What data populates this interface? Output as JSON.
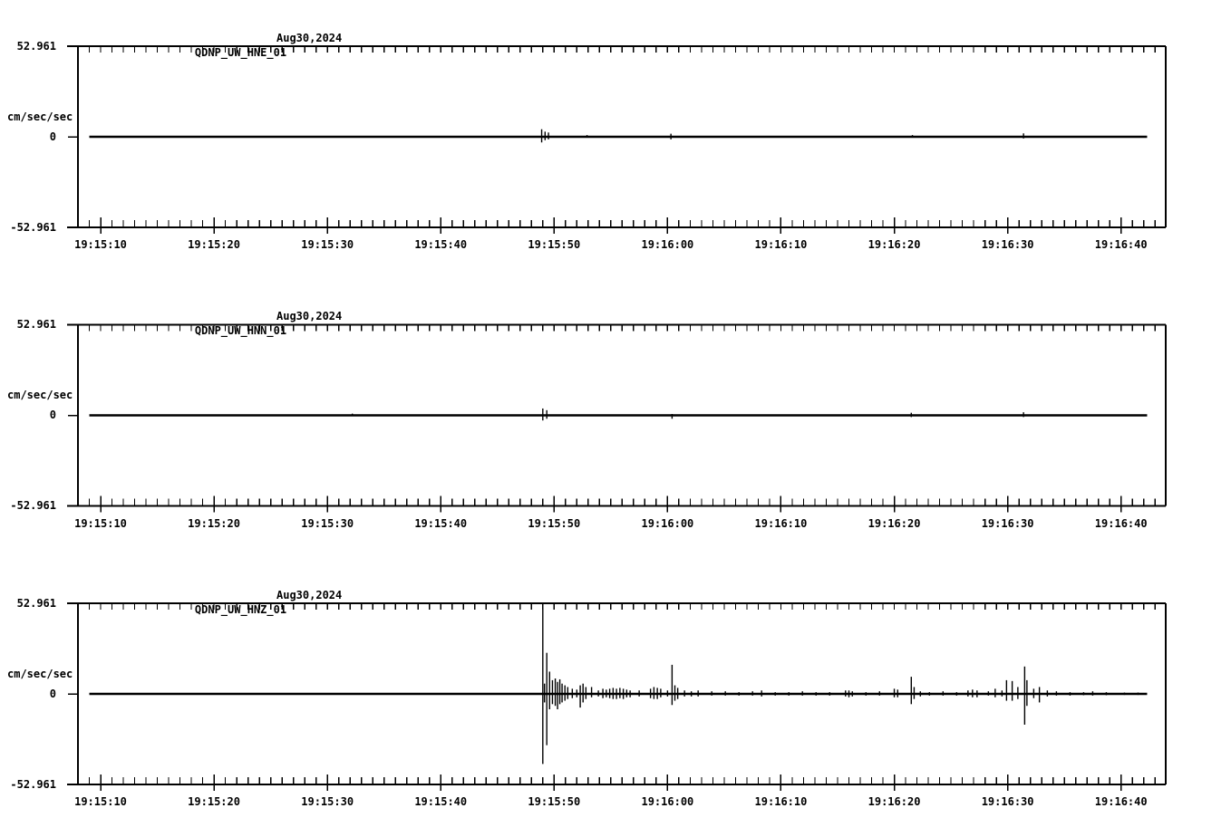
{
  "colors": {
    "background": "#ffffff",
    "ink": "#000000"
  },
  "y_axis": {
    "top_label": "52.961",
    "zero_label": "0",
    "bottom_label": "-52.961",
    "unit_label": "cm/sec/sec"
  },
  "chart_data": [
    {
      "type": "line",
      "title": "QDNP_UW_HNE_01",
      "date": "Aug30,2024",
      "ylabel": "cm/sec/sec",
      "ylim": [
        -52.961,
        52.961
      ],
      "ytick_labels": [
        "52.961",
        "0",
        "-52.961"
      ],
      "xtick_labels": [
        "19:15:10",
        "19:15:20",
        "19:15:30",
        "19:15:40",
        "19:15:50",
        "19:16:00",
        "19:16:10",
        "19:16:20",
        "19:16:30",
        "19:16:40"
      ],
      "xtick_seconds": [
        10,
        20,
        30,
        40,
        50,
        60,
        70,
        80,
        90,
        100
      ],
      "minor_tick_step_seconds": 1,
      "window_seconds": [
        8,
        103.9
      ],
      "baseline_value": 0,
      "trace_span_seconds": [
        9,
        102.3
      ],
      "spikes": [
        [
          48.9,
          4.4,
          -3.3
        ],
        [
          49.2,
          3,
          -2
        ],
        [
          49.5,
          2.5,
          -1.5
        ],
        [
          52.9,
          1,
          -0.5
        ],
        [
          60.3,
          1.8,
          -1.5
        ],
        [
          81.6,
          1,
          -0.5
        ],
        [
          91.4,
          2,
          -1
        ]
      ]
    },
    {
      "type": "line",
      "title": "QDNP_UW_HNN_01",
      "date": "Aug30,2024",
      "ylabel": "cm/sec/sec",
      "ylim": [
        -52.961,
        52.961
      ],
      "ytick_labels": [
        "52.961",
        "0",
        "-52.961"
      ],
      "xtick_labels": [
        "19:15:10",
        "19:15:20",
        "19:15:30",
        "19:15:40",
        "19:15:50",
        "19:16:00",
        "19:16:10",
        "19:16:20",
        "19:16:30",
        "19:16:40"
      ],
      "xtick_seconds": [
        10,
        20,
        30,
        40,
        50,
        60,
        70,
        80,
        90,
        100
      ],
      "minor_tick_step_seconds": 1,
      "window_seconds": [
        8,
        103.9
      ],
      "baseline_value": 0,
      "trace_span_seconds": [
        9,
        102.3
      ],
      "spikes": [
        [
          32.2,
          1,
          -0.4
        ],
        [
          49.0,
          4,
          -3
        ],
        [
          49.35,
          3,
          -2
        ],
        [
          60.4,
          0.8,
          -2
        ],
        [
          81.5,
          1.5,
          -1
        ],
        [
          91.4,
          1.8,
          -1
        ]
      ]
    },
    {
      "type": "line",
      "title": "QDNP_UW_HNZ_01",
      "date": "Aug30,2024",
      "ylabel": "cm/sec/sec",
      "ylim": [
        -52.961,
        52.961
      ],
      "ytick_labels": [
        "52.961",
        "0",
        "-52.961"
      ],
      "xtick_labels": [
        "19:15:10",
        "19:15:20",
        "19:15:30",
        "19:15:40",
        "19:15:50",
        "19:16:00",
        "19:16:10",
        "19:16:20",
        "19:16:30",
        "19:16:40"
      ],
      "xtick_seconds": [
        10,
        20,
        30,
        40,
        50,
        60,
        70,
        80,
        90,
        100
      ],
      "minor_tick_step_seconds": 1,
      "window_seconds": [
        8,
        103.9
      ],
      "baseline_value": 0,
      "trace_span_seconds": [
        9,
        102.3
      ],
      "spikes": [
        [
          49.0,
          52.8,
          -41
        ],
        [
          49.15,
          6,
          -5
        ],
        [
          49.35,
          24,
          -30
        ],
        [
          49.6,
          13,
          -9
        ],
        [
          49.85,
          8,
          -6
        ],
        [
          50.1,
          9,
          -7
        ],
        [
          50.3,
          7,
          -9
        ],
        [
          50.5,
          8.5,
          -6
        ],
        [
          50.7,
          6,
          -5
        ],
        [
          50.95,
          5,
          -4
        ],
        [
          51.2,
          4,
          -3
        ],
        [
          51.6,
          3,
          -2.5
        ],
        [
          52.0,
          2.5,
          -2
        ],
        [
          52.3,
          5,
          -8
        ],
        [
          52.55,
          6,
          -5
        ],
        [
          52.8,
          4,
          -3
        ],
        [
          53.3,
          4,
          -2
        ],
        [
          53.9,
          2,
          -1.5
        ],
        [
          54.3,
          3,
          -2.5
        ],
        [
          54.6,
          2.5,
          -2
        ],
        [
          54.9,
          3,
          -2.5
        ],
        [
          55.2,
          3.5,
          -3
        ],
        [
          55.5,
          3,
          -3
        ],
        [
          55.8,
          3.5,
          -2.5
        ],
        [
          56.1,
          3,
          -3
        ],
        [
          56.4,
          2.5,
          -2
        ],
        [
          56.7,
          2,
          -2
        ],
        [
          57.5,
          2,
          -1.5
        ],
        [
          58.5,
          3,
          -2.5
        ],
        [
          58.8,
          4,
          -3
        ],
        [
          59.1,
          3.5,
          -3
        ],
        [
          59.4,
          3,
          -2
        ],
        [
          60.0,
          2,
          -1.5
        ],
        [
          60.4,
          17,
          -6.5
        ],
        [
          60.65,
          5,
          -4
        ],
        [
          60.9,
          3.5,
          -3
        ],
        [
          61.5,
          2,
          -1.5
        ],
        [
          62.1,
          1.5,
          -1.5
        ],
        [
          62.7,
          2,
          -1.5
        ],
        [
          63.9,
          1.5,
          -1
        ],
        [
          65.1,
          1.5,
          -1
        ],
        [
          66.3,
          1,
          -1
        ],
        [
          67.5,
          1.5,
          -1
        ],
        [
          68.3,
          2,
          -1.5
        ],
        [
          69.5,
          1,
          -1
        ],
        [
          70.7,
          1,
          -1
        ],
        [
          71.9,
          1.5,
          -1
        ],
        [
          73.1,
          1,
          -1
        ],
        [
          74.3,
          1,
          -1
        ],
        [
          75.7,
          2,
          -1.5
        ],
        [
          76.0,
          2,
          -2
        ],
        [
          76.3,
          1.5,
          -1.5
        ],
        [
          77.5,
          1,
          -1
        ],
        [
          78.7,
          1.5,
          -1
        ],
        [
          80.0,
          3,
          -2
        ],
        [
          80.3,
          2.5,
          -2
        ],
        [
          81.5,
          10,
          -6
        ],
        [
          81.75,
          4,
          -3
        ],
        [
          82.3,
          1.5,
          -1.5
        ],
        [
          83.1,
          1,
          -1
        ],
        [
          84.3,
          1.5,
          -1
        ],
        [
          85.5,
          1,
          -1
        ],
        [
          86.5,
          2,
          -1.5
        ],
        [
          86.9,
          2.5,
          -2
        ],
        [
          87.3,
          2,
          -2
        ],
        [
          88.3,
          1.5,
          -1
        ],
        [
          88.9,
          3,
          -2
        ],
        [
          89.5,
          2,
          -1.5
        ],
        [
          89.9,
          8,
          -4
        ],
        [
          90.4,
          7.5,
          -4
        ],
        [
          90.9,
          4,
          -3
        ],
        [
          91.5,
          16,
          -18
        ],
        [
          91.7,
          8,
          -7
        ],
        [
          92.3,
          3,
          -2.5
        ],
        [
          92.8,
          4,
          -5
        ],
        [
          93.5,
          2,
          -1.5
        ],
        [
          94.3,
          1.5,
          -1
        ],
        [
          95.5,
          1,
          -1
        ],
        [
          96.7,
          1,
          -0.8
        ],
        [
          97.5,
          1.5,
          -1
        ],
        [
          98.7,
          1,
          -0.8
        ],
        [
          100.3,
          0.8,
          -0.6
        ],
        [
          101.5,
          0.8,
          -0.6
        ]
      ]
    }
  ]
}
